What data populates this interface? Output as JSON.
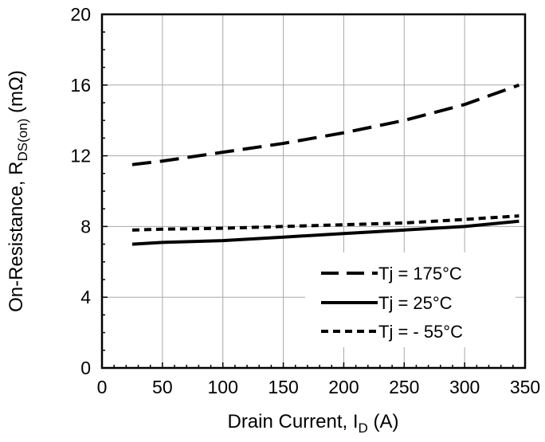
{
  "chart_data": {
    "type": "line",
    "title": "",
    "xlabel": {
      "main": "Drain Current, I",
      "sub": "D",
      "suffix": " (A)"
    },
    "ylabel": {
      "main": "On-Resistance, R",
      "sub": "DS(on)",
      "suffix": " (mΩ)"
    },
    "xlim": [
      0,
      350
    ],
    "ylim": [
      0,
      20
    ],
    "x_ticks": [
      0,
      50,
      100,
      150,
      200,
      250,
      300,
      350
    ],
    "y_ticks": [
      0,
      4,
      8,
      12,
      16,
      20
    ],
    "x_minor_step": 10,
    "y_minor_step": 1,
    "grid": true,
    "legend_position": "bottom-right",
    "series": [
      {
        "name": "Tj = 175°C",
        "style": "long-dash",
        "color": "#000000",
        "points": [
          [
            25,
            11.5
          ],
          [
            50,
            11.7
          ],
          [
            100,
            12.2
          ],
          [
            150,
            12.7
          ],
          [
            200,
            13.3
          ],
          [
            250,
            14.0
          ],
          [
            300,
            14.9
          ],
          [
            345,
            16.0
          ]
        ]
      },
      {
        "name": "Tj = 25°C",
        "style": "solid",
        "color": "#000000",
        "points": [
          [
            25,
            7.0
          ],
          [
            50,
            7.1
          ],
          [
            100,
            7.2
          ],
          [
            150,
            7.4
          ],
          [
            200,
            7.6
          ],
          [
            250,
            7.8
          ],
          [
            300,
            8.0
          ],
          [
            345,
            8.3
          ]
        ]
      },
      {
        "name": "Tj = - 55°C",
        "style": "short-dash",
        "color": "#000000",
        "points": [
          [
            25,
            7.8
          ],
          [
            50,
            7.85
          ],
          [
            100,
            7.9
          ],
          [
            150,
            8.0
          ],
          [
            200,
            8.1
          ],
          [
            250,
            8.2
          ],
          [
            300,
            8.4
          ],
          [
            345,
            8.6
          ]
        ]
      }
    ]
  }
}
